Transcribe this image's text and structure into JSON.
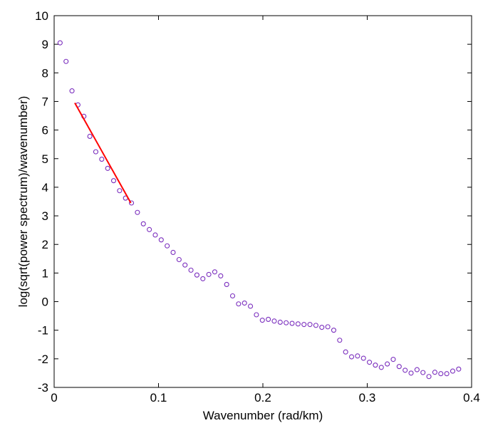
{
  "chart_data": {
    "type": "scatter",
    "title": "",
    "xlabel": "Wavenumber (rad/km)",
    "ylabel": "log(sqrt(power spectrum)/wavenumber)",
    "xlim": [
      0,
      0.4
    ],
    "ylim": [
      -3,
      10
    ],
    "xticks": [
      0,
      0.1,
      0.2,
      0.3,
      0.4
    ],
    "xtick_labels": [
      "0",
      "0.1",
      "0.2",
      "0.3",
      "0.4"
    ],
    "yticks": [
      -3,
      -2,
      -1,
      0,
      1,
      2,
      3,
      4,
      5,
      6,
      7,
      8,
      9,
      10
    ],
    "ytick_labels": [
      "-3",
      "-2",
      "-1",
      "0",
      "1",
      "2",
      "3",
      "4",
      "5",
      "6",
      "7",
      "8",
      "9",
      "10"
    ],
    "grid": false,
    "series": [
      {
        "type": "scatter",
        "color": "#7B2FBE",
        "marker": "circle-open",
        "points": [
          [
            0.0057,
            9.05
          ],
          [
            0.0114,
            8.4
          ],
          [
            0.0171,
            7.37
          ],
          [
            0.0228,
            6.88
          ],
          [
            0.0285,
            6.48
          ],
          [
            0.0342,
            5.78
          ],
          [
            0.0399,
            5.24
          ],
          [
            0.0456,
            4.98
          ],
          [
            0.0513,
            4.66
          ],
          [
            0.057,
            4.23
          ],
          [
            0.0627,
            3.88
          ],
          [
            0.0684,
            3.62
          ],
          [
            0.0741,
            3.45
          ],
          [
            0.0798,
            3.12
          ],
          [
            0.0855,
            2.72
          ],
          [
            0.0912,
            2.52
          ],
          [
            0.0969,
            2.33
          ],
          [
            0.1026,
            2.16
          ],
          [
            0.1083,
            1.95
          ],
          [
            0.114,
            1.72
          ],
          [
            0.1197,
            1.47
          ],
          [
            0.1254,
            1.28
          ],
          [
            0.1311,
            1.1
          ],
          [
            0.1368,
            0.93
          ],
          [
            0.1425,
            0.8
          ],
          [
            0.1482,
            0.95
          ],
          [
            0.1539,
            1.04
          ],
          [
            0.1596,
            0.9
          ],
          [
            0.1653,
            0.6
          ],
          [
            0.171,
            0.2
          ],
          [
            0.1767,
            -0.08
          ],
          [
            0.1824,
            -0.05
          ],
          [
            0.1881,
            -0.16
          ],
          [
            0.1938,
            -0.46
          ],
          [
            0.1995,
            -0.65
          ],
          [
            0.2052,
            -0.62
          ],
          [
            0.2109,
            -0.68
          ],
          [
            0.2166,
            -0.72
          ],
          [
            0.2223,
            -0.74
          ],
          [
            0.228,
            -0.76
          ],
          [
            0.2337,
            -0.78
          ],
          [
            0.2394,
            -0.8
          ],
          [
            0.2451,
            -0.8
          ],
          [
            0.2508,
            -0.83
          ],
          [
            0.2565,
            -0.9
          ],
          [
            0.2622,
            -0.88
          ],
          [
            0.2679,
            -1.0
          ],
          [
            0.2736,
            -1.35
          ],
          [
            0.2793,
            -1.76
          ],
          [
            0.285,
            -1.93
          ],
          [
            0.2907,
            -1.9
          ],
          [
            0.2964,
            -1.98
          ],
          [
            0.3021,
            -2.12
          ],
          [
            0.3078,
            -2.22
          ],
          [
            0.3135,
            -2.3
          ],
          [
            0.3192,
            -2.18
          ],
          [
            0.3249,
            -2.02
          ],
          [
            0.3306,
            -2.27
          ],
          [
            0.3363,
            -2.4
          ],
          [
            0.342,
            -2.5
          ],
          [
            0.3477,
            -2.38
          ],
          [
            0.3534,
            -2.48
          ],
          [
            0.3591,
            -2.62
          ],
          [
            0.3648,
            -2.47
          ],
          [
            0.3705,
            -2.52
          ],
          [
            0.3762,
            -2.52
          ],
          [
            0.3819,
            -2.43
          ],
          [
            0.3876,
            -2.36
          ]
        ]
      },
      {
        "type": "line",
        "color": "#FF0000",
        "points": [
          [
            0.0198,
            6.95
          ],
          [
            0.0735,
            3.45
          ]
        ]
      }
    ]
  }
}
